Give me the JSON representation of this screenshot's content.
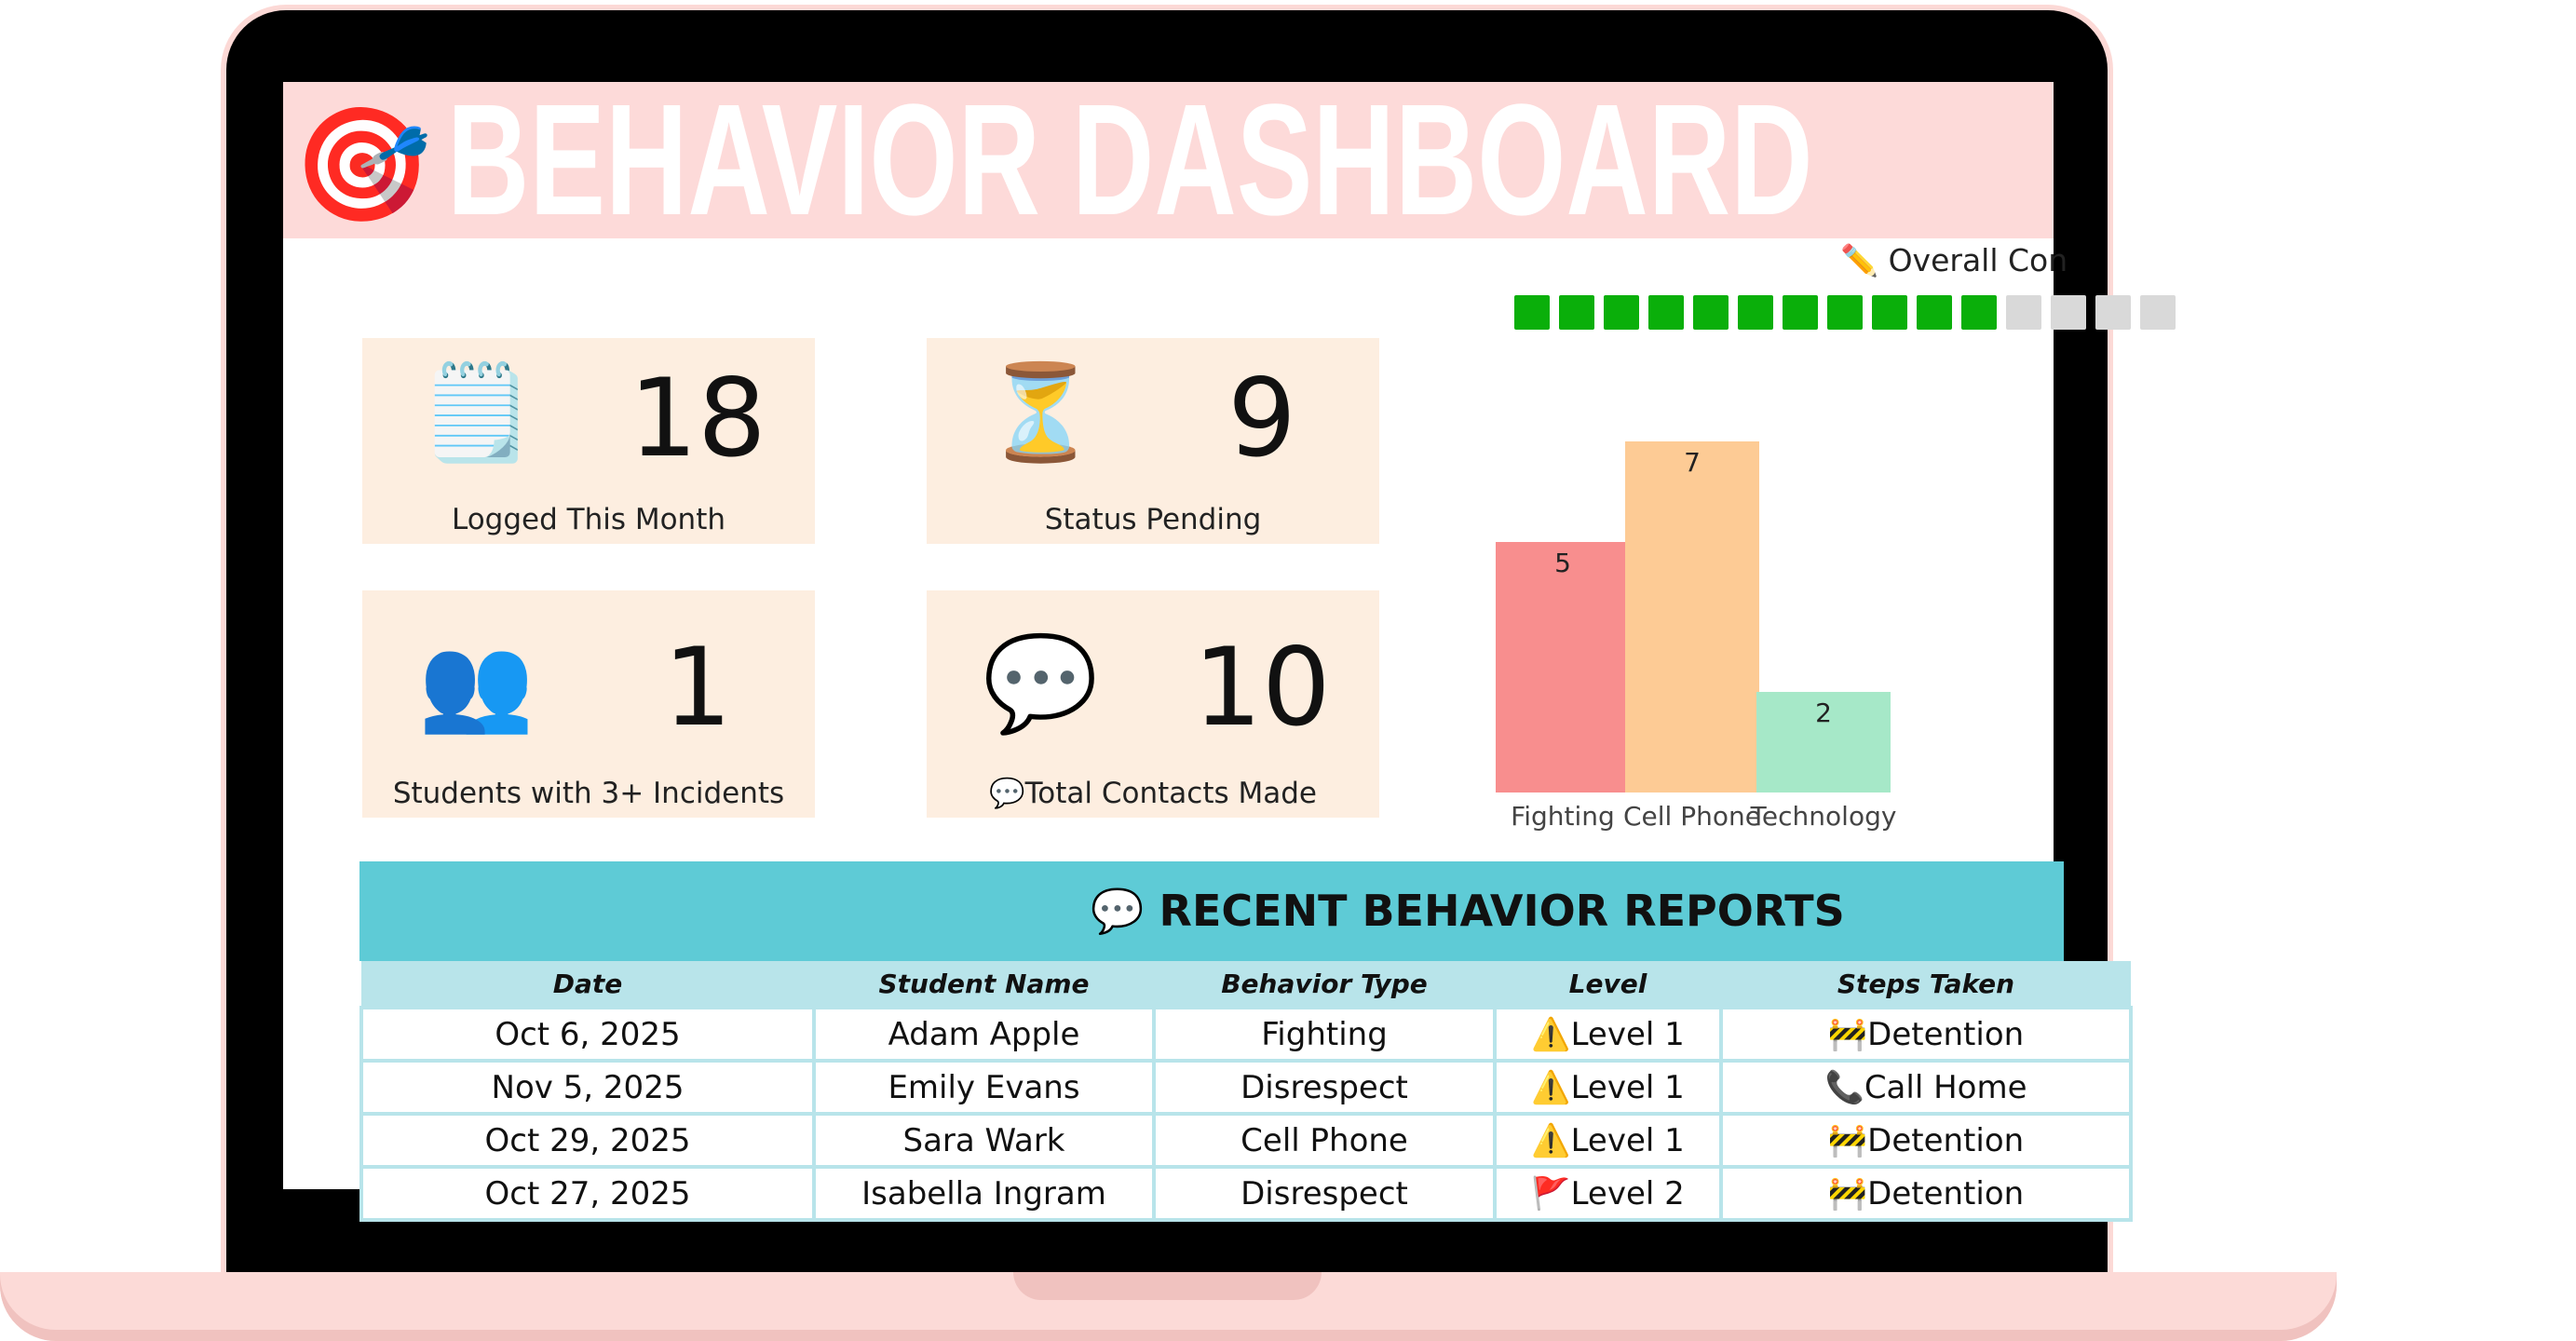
{
  "header": {
    "title": "BEHAVIOR DASHBOARD",
    "icon": "target-dart-icon"
  },
  "cards": [
    {
      "value": "18",
      "label": "Logged This Month",
      "icon": "notepad-icon"
    },
    {
      "value": "9",
      "label": "Status Pending",
      "icon": "hourglass-icon"
    },
    {
      "value": "1",
      "label": "Students with 3+ Incidents",
      "icon": "busts-icon"
    },
    {
      "value": "10",
      "label": "💬Total Contacts Made",
      "icon": "speech-bubble-icon"
    }
  ],
  "progress": {
    "label": "✏️ Overall Con",
    "filled": 11,
    "total": 15,
    "fill_color": "#0aaf0a",
    "empty_color": "#d9d9d9"
  },
  "chart_data": {
    "type": "bar",
    "categories": [
      "Fighting",
      "Cell Phone",
      "Technology"
    ],
    "values": [
      5,
      7,
      2
    ],
    "colors": [
      "#f88e8e",
      "#fdcb95",
      "#a6e8c8"
    ],
    "ylim": [
      0,
      7.5
    ]
  },
  "table": {
    "title": "💬 RECENT BEHAVIOR REPORTS",
    "columns": [
      "Date",
      "Student Name",
      "Behavior Type",
      "Level",
      "Steps Taken"
    ],
    "rows": [
      [
        "Oct 6, 2025",
        "Adam Apple",
        "Fighting",
        "⚠️Level 1",
        "🚧Detention"
      ],
      [
        "Nov 5, 2025",
        "Emily Evans",
        "Disrespect",
        "⚠️Level 1",
        "📞Call Home"
      ],
      [
        "Oct 29, 2025",
        "Sara Wark",
        "Cell Phone",
        "⚠️Level 1",
        "🚧Detention"
      ],
      [
        "Oct 27, 2025",
        "Isabella Ingram",
        "Disrespect",
        "🚩Level 2",
        "🚧Detention"
      ]
    ]
  }
}
